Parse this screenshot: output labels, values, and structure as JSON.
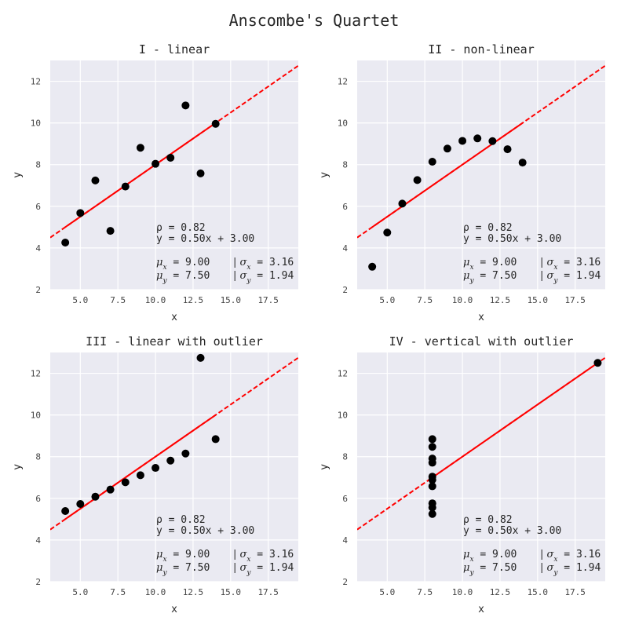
{
  "figure_title": "Anscombe's Quartet",
  "colors": {
    "panel_bg": "#eaeaf2",
    "grid": "#ffffff",
    "points": "#000000",
    "fit_line": "#ff0000"
  },
  "chart_data": [
    {
      "type": "scatter",
      "title": "I - linear",
      "xlabel": "x",
      "ylabel": "y",
      "xlim": [
        3,
        19.5
      ],
      "ylim": [
        2,
        13
      ],
      "xticks": [
        "5.0",
        "7.5",
        "10.0",
        "12.5",
        "15.0",
        "17.5"
      ],
      "yticks": [
        "2",
        "4",
        "6",
        "8",
        "10",
        "12"
      ],
      "grid": true,
      "x": [
        10,
        8,
        13,
        9,
        11,
        14,
        6,
        4,
        12,
        7,
        5
      ],
      "y": [
        8.04,
        6.95,
        7.58,
        8.81,
        8.33,
        9.96,
        7.24,
        4.26,
        10.84,
        4.82,
        5.68
      ],
      "fit": {
        "slope": 0.5,
        "intercept": 3.0
      },
      "stats": {
        "rho": "ρ = 0.82",
        "equation": "y = 0.50x + 3.00",
        "mu_x": "9.00",
        "sigma_x": "3.16",
        "mu_y": "7.50",
        "sigma_y": "1.94"
      }
    },
    {
      "type": "scatter",
      "title": "II - non-linear",
      "xlabel": "x",
      "ylabel": "y",
      "xlim": [
        3,
        19.5
      ],
      "ylim": [
        2,
        13
      ],
      "xticks": [
        "5.0",
        "7.5",
        "10.0",
        "12.5",
        "15.0",
        "17.5"
      ],
      "yticks": [
        "2",
        "4",
        "6",
        "8",
        "10",
        "12"
      ],
      "grid": true,
      "x": [
        10,
        8,
        13,
        9,
        11,
        14,
        6,
        4,
        12,
        7,
        5
      ],
      "y": [
        9.14,
        8.14,
        8.74,
        8.77,
        9.26,
        8.1,
        6.13,
        3.1,
        9.13,
        7.26,
        4.74
      ],
      "fit": {
        "slope": 0.5,
        "intercept": 3.0
      },
      "stats": {
        "rho": "ρ = 0.82",
        "equation": "y = 0.50x + 3.00",
        "mu_x": "9.00",
        "sigma_x": "3.16",
        "mu_y": "7.50",
        "sigma_y": "1.94"
      }
    },
    {
      "type": "scatter",
      "title": "III - linear with outlier",
      "xlabel": "x",
      "ylabel": "y",
      "xlim": [
        3,
        19.5
      ],
      "ylim": [
        2,
        13
      ],
      "xticks": [
        "5.0",
        "7.5",
        "10.0",
        "12.5",
        "15.0",
        "17.5"
      ],
      "yticks": [
        "2",
        "4",
        "6",
        "8",
        "10",
        "12"
      ],
      "grid": true,
      "x": [
        10,
        8,
        13,
        9,
        11,
        14,
        6,
        4,
        12,
        7,
        5
      ],
      "y": [
        7.46,
        6.77,
        12.74,
        7.11,
        7.81,
        8.84,
        6.08,
        5.39,
        8.15,
        6.42,
        5.73
      ],
      "fit": {
        "slope": 0.5,
        "intercept": 3.0
      },
      "stats": {
        "rho": "ρ = 0.82",
        "equation": "y = 0.50x + 3.00",
        "mu_x": "9.00",
        "sigma_x": "3.16",
        "mu_y": "7.50",
        "sigma_y": "1.94"
      }
    },
    {
      "type": "scatter",
      "title": "IV - vertical with outlier",
      "xlabel": "x",
      "ylabel": "y",
      "xlim": [
        3,
        19.5
      ],
      "ylim": [
        2,
        13
      ],
      "xticks": [
        "5.0",
        "7.5",
        "10.0",
        "12.5",
        "15.0",
        "17.5"
      ],
      "yticks": [
        "2",
        "4",
        "6",
        "8",
        "10",
        "12"
      ],
      "grid": true,
      "x": [
        8,
        8,
        8,
        8,
        8,
        8,
        8,
        19,
        8,
        8,
        8
      ],
      "y": [
        6.58,
        5.76,
        7.71,
        8.84,
        8.47,
        7.04,
        5.25,
        12.5,
        5.56,
        7.91,
        6.89
      ],
      "fit": {
        "slope": 0.5,
        "intercept": 3.0
      },
      "stats": {
        "rho": "ρ = 0.82",
        "equation": "y = 0.50x + 3.00",
        "mu_x": "9.00",
        "sigma_x": "3.16",
        "mu_y": "7.50",
        "sigma_y": "1.94"
      }
    }
  ]
}
